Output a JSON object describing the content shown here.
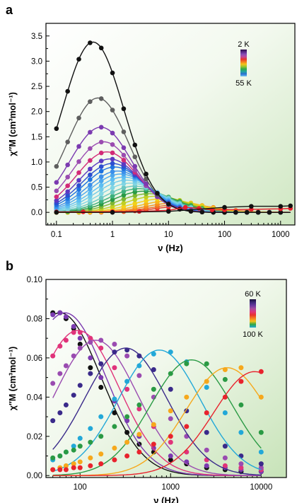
{
  "chart_data": [
    {
      "panel_label": "a",
      "type": "line",
      "xscale": "log",
      "xlabel": "ν (Hz)",
      "ylabel": "χ″M (cm³mol⁻¹)",
      "ylim": [
        -0.25,
        3.75
      ],
      "xlim": [
        0.065,
        1800
      ],
      "yticks": [
        "0.0",
        "0.5",
        "1.0",
        "1.5",
        "2.0",
        "2.5",
        "3.0",
        "3.5"
      ],
      "xticks": [
        "0.1",
        "1",
        "10",
        "100",
        "1000"
      ],
      "colorbar": {
        "top": "2 K",
        "bottom": "55 K",
        "colors": [
          "#2b0f4a",
          "#5a2a8a",
          "#8a4fb8",
          "#c04a9a",
          "#e8332d",
          "#f47a20",
          "#f6c21a",
          "#9ac531",
          "#2fa84a",
          "#22a8a0",
          "#2b6fd1",
          "#6ec4f0"
        ]
      },
      "grid": false,
      "background": "green-gradient",
      "peak_series": [
        {
          "color": "#111111",
          "amp": 3.38,
          "peak": 0.45,
          "width": 1.15
        },
        {
          "color": "#5e5e5e",
          "amp": 2.27,
          "peak": 0.55,
          "width": 1.15
        },
        {
          "color": "#7b3ab0",
          "amp": 1.69,
          "peak": 0.62,
          "width": 1.15
        },
        {
          "color": "#9a4bb0",
          "amp": 1.4,
          "peak": 0.7,
          "width": 1.15
        },
        {
          "color": "#d22a78",
          "amp": 1.2,
          "peak": 0.8,
          "width": 1.15
        },
        {
          "color": "#5b39c2",
          "amp": 1.06,
          "peak": 0.9,
          "width": 1.15
        },
        {
          "color": "#2d4fd0",
          "amp": 0.97,
          "peak": 1.0,
          "width": 1.15
        },
        {
          "color": "#1e73e0",
          "amp": 0.9,
          "peak": 1.1,
          "width": 1.15
        },
        {
          "color": "#3c8fea",
          "amp": 0.82,
          "peak": 1.25,
          "width": 1.15
        },
        {
          "color": "#4ca7ee",
          "amp": 0.76,
          "peak": 1.4,
          "width": 1.15
        },
        {
          "color": "#5cbdf2",
          "amp": 0.7,
          "peak": 1.6,
          "width": 1.15
        },
        {
          "color": "#71cbe8",
          "amp": 0.64,
          "peak": 1.8,
          "width": 1.15
        },
        {
          "color": "#80d5e3",
          "amp": 0.58,
          "peak": 2.1,
          "width": 1.15
        },
        {
          "color": "#6bc7c0",
          "amp": 0.52,
          "peak": 2.5,
          "width": 1.15
        },
        {
          "color": "#3db07a",
          "amp": 0.47,
          "peak": 3.0,
          "width": 1.15
        },
        {
          "color": "#2a9a44",
          "amp": 0.42,
          "peak": 3.6,
          "width": 1.15
        },
        {
          "color": "#7fb733",
          "amp": 0.37,
          "peak": 4.5,
          "width": 1.15
        },
        {
          "color": "#c1cf22",
          "amp": 0.32,
          "peak": 6.0,
          "width": 1.15
        },
        {
          "color": "#f2d01a",
          "amp": 0.27,
          "peak": 8.0,
          "width": 1.15
        },
        {
          "color": "#f6b31c",
          "amp": 0.23,
          "peak": 11.0,
          "width": 1.15
        },
        {
          "color": "#f58b1f",
          "amp": 0.19,
          "peak": 14.0,
          "width": 1.15
        },
        {
          "color": "#ef6a23",
          "amp": 0.16,
          "peak": 18.0,
          "width": 1.15
        },
        {
          "color": "#e8332d",
          "amp": 0.13,
          "peak": 22.0,
          "width": 1.15
        }
      ],
      "flat_series": [
        {
          "color": "#e81e2b",
          "points": [
            [
              0.1,
              0.01
            ],
            [
              0.3,
              0.01
            ],
            [
              1,
              0.015
            ],
            [
              3,
              0.02
            ],
            [
              10,
              0.04
            ],
            [
              20,
              0.1
            ],
            [
              35,
              0.08
            ],
            [
              60,
              0.05
            ],
            [
              100,
              0.05
            ],
            [
              300,
              0.06
            ],
            [
              1000,
              0.07
            ],
            [
              1500,
              0.08
            ]
          ]
        },
        {
          "color": "#111111",
          "points": [
            [
              0.1,
              0.0
            ],
            [
              1,
              0.0
            ],
            [
              10,
              0.02
            ],
            [
              100,
              0.1
            ],
            [
              300,
              0.12
            ],
            [
              1000,
              0.12
            ],
            [
              1500,
              0.13
            ]
          ]
        }
      ]
    },
    {
      "panel_label": "b",
      "type": "line",
      "xscale": "log",
      "xlabel": "ν (Hz)",
      "ylabel": "χ″M (cm³mol⁻¹)",
      "ylim": [
        -0.001,
        0.1
      ],
      "xlim": [
        42,
        19000
      ],
      "yticks": [
        "0.00",
        "0.02",
        "0.04",
        "0.06",
        "0.08",
        "0.10"
      ],
      "xticks": [
        "100",
        "1000",
        "10000"
      ],
      "colorbar": {
        "top": "60 K",
        "bottom": "100 K",
        "colors": [
          "#1a0f3a",
          "#3e2a7a",
          "#6b3aa0",
          "#a44da0",
          "#e0337a",
          "#e8332d",
          "#f47a20",
          "#f6c21a",
          "#2fa84a",
          "#22a8d8"
        ]
      },
      "grid": false,
      "background": "green-gradient",
      "series": [
        {
          "color": "#111111",
          "amp": 0.083,
          "peak": 60,
          "width": 0.95,
          "points": [
            [
              50,
              0.083
            ],
            [
              60,
              0.083
            ],
            [
              70,
              0.08
            ],
            [
              85,
              0.075
            ],
            [
              100,
              0.067
            ],
            [
              130,
              0.055
            ],
            [
              170,
              0.045
            ],
            [
              240,
              0.032
            ],
            [
              330,
              0.022
            ],
            [
              450,
              0.016
            ],
            [
              650,
              0.012
            ],
            [
              1000,
              0.008
            ],
            [
              1500,
              0.006
            ],
            [
              2500,
              0.004
            ],
            [
              4000,
              0.003
            ],
            [
              6000,
              0.002
            ],
            [
              10000,
              0.002
            ]
          ]
        },
        {
          "color": "#7b3ab0",
          "amp": 0.083,
          "peak": 68,
          "width": 0.95,
          "points": [
            [
              50,
              0.082
            ],
            [
              60,
              0.083
            ],
            [
              70,
              0.081
            ],
            [
              85,
              0.076
            ],
            [
              100,
              0.07
            ],
            [
              130,
              0.06
            ],
            [
              170,
              0.05
            ],
            [
              240,
              0.038
            ],
            [
              330,
              0.028
            ],
            [
              450,
              0.02
            ],
            [
              650,
              0.014
            ],
            [
              1000,
              0.01
            ],
            [
              1500,
              0.007
            ],
            [
              2500,
              0.005
            ],
            [
              4000,
              0.004
            ],
            [
              6000,
              0.003
            ],
            [
              10000,
              0.002
            ]
          ]
        },
        {
          "color": "#e0337a",
          "amp": 0.074,
          "peak": 95,
          "width": 0.95,
          "points": [
            [
              50,
              0.061
            ],
            [
              60,
              0.066
            ],
            [
              70,
              0.069
            ],
            [
              85,
              0.073
            ],
            [
              100,
              0.073
            ],
            [
              130,
              0.07
            ],
            [
              170,
              0.065
            ],
            [
              240,
              0.055
            ],
            [
              330,
              0.044
            ],
            [
              450,
              0.034
            ],
            [
              650,
              0.025
            ],
            [
              1000,
              0.017
            ],
            [
              1500,
              0.012
            ],
            [
              2500,
              0.008
            ],
            [
              4000,
              0.005
            ],
            [
              6000,
              0.004
            ],
            [
              10000,
              0.003
            ]
          ]
        },
        {
          "color": "#9a4bb0",
          "amp": 0.069,
          "peak": 150,
          "width": 0.95,
          "points": [
            [
              50,
              0.047
            ],
            [
              60,
              0.052
            ],
            [
              70,
              0.056
            ],
            [
              85,
              0.061
            ],
            [
              100,
              0.065
            ],
            [
              130,
              0.068
            ],
            [
              170,
              0.069
            ],
            [
              240,
              0.067
            ],
            [
              330,
              0.061
            ],
            [
              450,
              0.051
            ],
            [
              650,
              0.04
            ],
            [
              1000,
              0.029
            ],
            [
              1500,
              0.02
            ],
            [
              2500,
              0.013
            ],
            [
              4000,
              0.009
            ],
            [
              6000,
              0.006
            ],
            [
              10000,
              0.004
            ]
          ]
        },
        {
          "color": "#3a2a8a",
          "amp": 0.065,
          "peak": 320,
          "width": 0.95,
          "points": [
            [
              50,
              0.028
            ],
            [
              60,
              0.032
            ],
            [
              70,
              0.036
            ],
            [
              85,
              0.041
            ],
            [
              100,
              0.046
            ],
            [
              130,
              0.052
            ],
            [
              170,
              0.057
            ],
            [
              240,
              0.063
            ],
            [
              330,
              0.064
            ],
            [
              450,
              0.061
            ],
            [
              650,
              0.054
            ],
            [
              1000,
              0.044
            ],
            [
              1500,
              0.033
            ],
            [
              2500,
              0.022
            ],
            [
              4000,
              0.015
            ],
            [
              6000,
              0.01
            ],
            [
              10000,
              0.006
            ]
          ]
        },
        {
          "color": "#22a8d8",
          "amp": 0.064,
          "peak": 750,
          "width": 0.95,
          "points": [
            [
              50,
              0.008
            ],
            [
              60,
              0.01
            ],
            [
              70,
              0.012
            ],
            [
              85,
              0.015
            ],
            [
              100,
              0.019
            ],
            [
              130,
              0.024
            ],
            [
              170,
              0.03
            ],
            [
              240,
              0.039
            ],
            [
              330,
              0.048
            ],
            [
              450,
              0.056
            ],
            [
              650,
              0.062
            ],
            [
              1000,
              0.063
            ],
            [
              1500,
              0.058
            ],
            [
              2500,
              0.045
            ],
            [
              4000,
              0.032
            ],
            [
              6000,
              0.022
            ],
            [
              10000,
              0.012
            ]
          ]
        },
        {
          "color": "#2a9a44",
          "amp": 0.059,
          "peak": 1700,
          "width": 0.95,
          "points": [
            [
              50,
              0.009
            ],
            [
              60,
              0.01
            ],
            [
              70,
              0.012
            ],
            [
              85,
              0.013
            ],
            [
              100,
              0.015
            ],
            [
              130,
              0.017
            ],
            [
              170,
              0.02
            ],
            [
              240,
              0.025
            ],
            [
              330,
              0.03
            ],
            [
              450,
              0.036
            ],
            [
              650,
              0.044
            ],
            [
              1000,
              0.052
            ],
            [
              1500,
              0.057
            ],
            [
              2500,
              0.057
            ],
            [
              4000,
              0.049
            ],
            [
              6000,
              0.036
            ],
            [
              10000,
              0.022
            ]
          ]
        },
        {
          "color": "#f6a81c",
          "amp": 0.055,
          "peak": 4200,
          "width": 0.95,
          "points": [
            [
              50,
              0.003
            ],
            [
              60,
              0.004
            ],
            [
              70,
              0.005
            ],
            [
              85,
              0.006
            ],
            [
              100,
              0.007
            ],
            [
              130,
              0.009
            ],
            [
              170,
              0.011
            ],
            [
              240,
              0.014
            ],
            [
              330,
              0.017
            ],
            [
              450,
              0.021
            ],
            [
              650,
              0.026
            ],
            [
              1000,
              0.033
            ],
            [
              1500,
              0.04
            ],
            [
              2500,
              0.048
            ],
            [
              4000,
              0.054
            ],
            [
              6000,
              0.055
            ],
            [
              10000,
              0.04
            ]
          ]
        },
        {
          "color": "#e8232d",
          "amp": 0.053,
          "peak": 8500,
          "width": 0.95,
          "points": [
            [
              50,
              0.003
            ],
            [
              60,
              0.003
            ],
            [
              70,
              0.003
            ],
            [
              85,
              0.004
            ],
            [
              100,
              0.004
            ],
            [
              130,
              0.005
            ],
            [
              170,
              0.006
            ],
            [
              240,
              0.008
            ],
            [
              330,
              0.01
            ],
            [
              450,
              0.012
            ],
            [
              650,
              0.016
            ],
            [
              1000,
              0.02
            ],
            [
              1500,
              0.025
            ],
            [
              2500,
              0.032
            ],
            [
              4000,
              0.04
            ],
            [
              6000,
              0.048
            ],
            [
              10000,
              0.053
            ]
          ]
        }
      ]
    }
  ]
}
